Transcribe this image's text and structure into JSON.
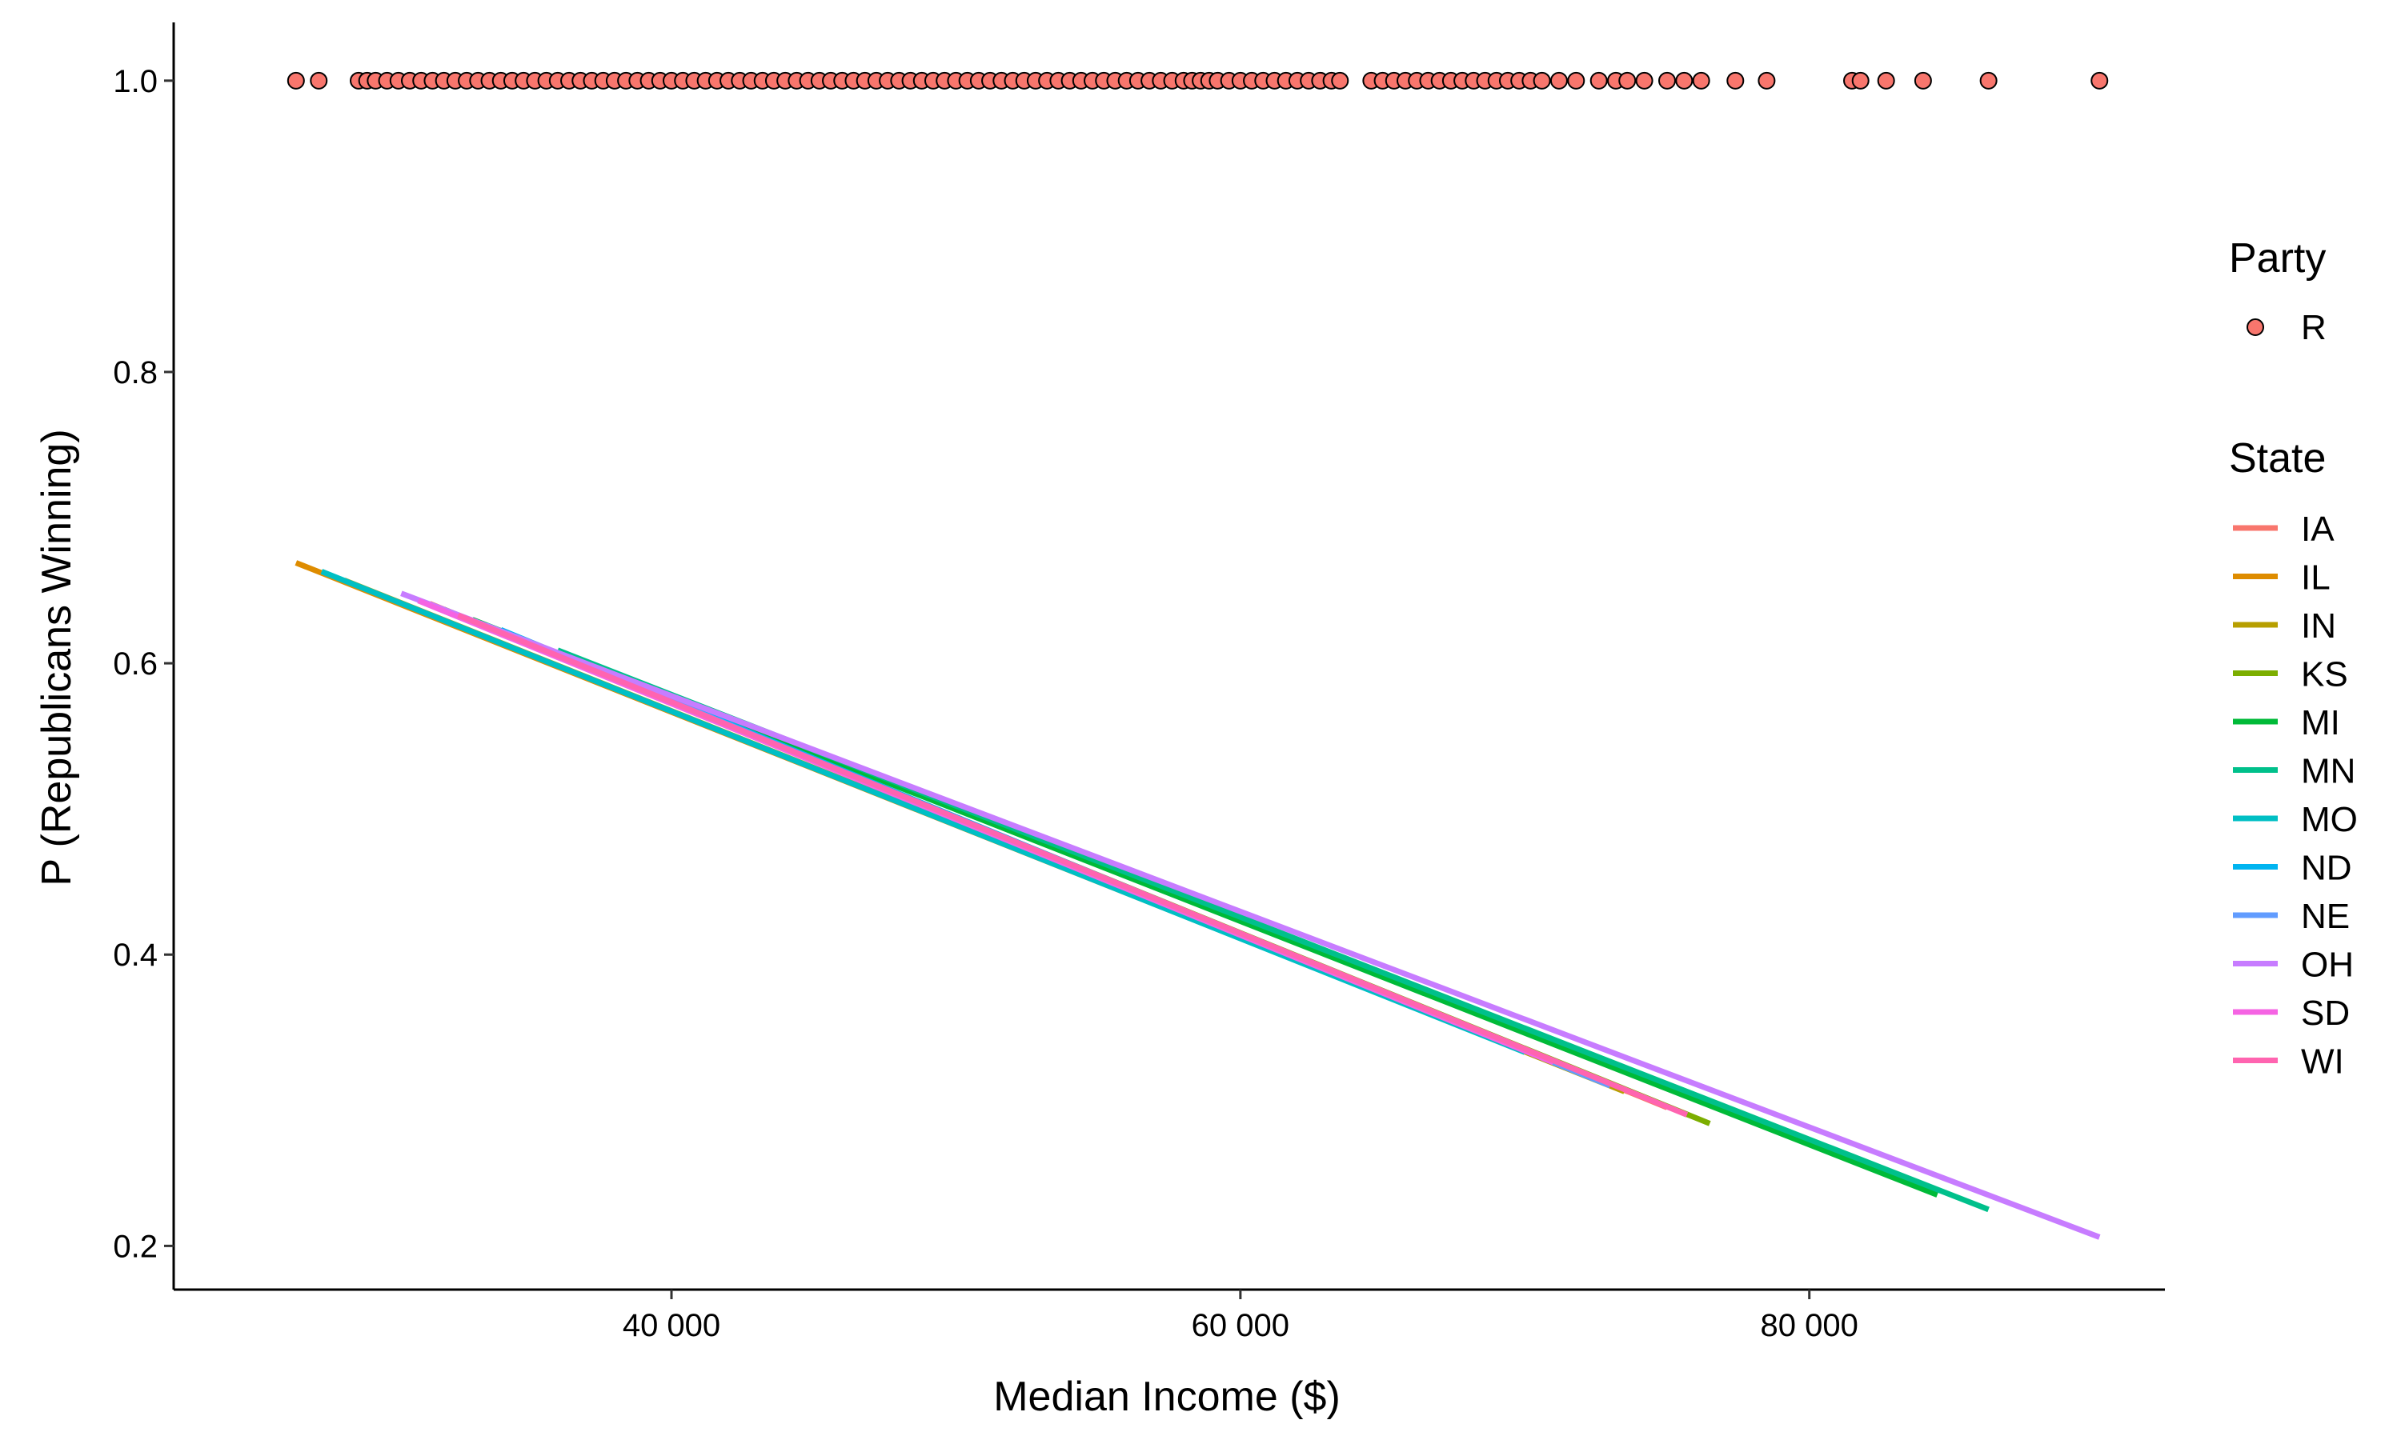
{
  "chart_data": {
    "type": "scatter",
    "xlabel": "Median Income ($)",
    "ylabel": "P (Republicans Winning)",
    "xlim": [
      22500,
      92500
    ],
    "ylim": [
      0.17,
      1.04
    ],
    "x_ticks": [
      40000,
      60000,
      80000
    ],
    "x_tick_labels": [
      "40 000",
      "60 000",
      "80 000"
    ],
    "y_ticks": [
      0.2,
      0.4,
      0.6,
      0.8,
      1.0
    ],
    "y_tick_labels": [
      "0.2",
      "0.4",
      "0.6",
      "0.8",
      "1.0"
    ],
    "grid": false,
    "points": {
      "legend_title": "Party",
      "series_name": "R",
      "fill": "#F8766D",
      "stroke": "#000000",
      "y": 1.0,
      "x": [
        26800,
        27600,
        29000,
        29300,
        29600,
        30000,
        30400,
        30800,
        31200,
        31600,
        32000,
        32400,
        32800,
        33200,
        33600,
        34000,
        34400,
        34800,
        35200,
        35600,
        36000,
        36400,
        36800,
        37200,
        37600,
        38000,
        38400,
        38800,
        39200,
        39600,
        40000,
        40400,
        40800,
        41200,
        41600,
        42000,
        42400,
        42800,
        43200,
        43600,
        44000,
        44400,
        44800,
        45200,
        45600,
        46000,
        46400,
        46800,
        47200,
        47600,
        48000,
        48400,
        48800,
        49200,
        49600,
        50000,
        50400,
        50800,
        51200,
        51600,
        52000,
        52400,
        52800,
        53200,
        53600,
        54000,
        54400,
        54800,
        55200,
        55600,
        56000,
        56400,
        56800,
        57200,
        57600,
        58000,
        58300,
        58600,
        58900,
        59200,
        59600,
        60000,
        60400,
        60800,
        61200,
        61600,
        62000,
        62400,
        62800,
        63200,
        63500,
        64600,
        65000,
        65400,
        65800,
        66200,
        66600,
        67000,
        67400,
        67800,
        68200,
        68600,
        69000,
        69400,
        69800,
        70200,
        70600,
        71200,
        71800,
        72600,
        73200,
        73600,
        74200,
        75000,
        75600,
        76200,
        77400,
        78500,
        81500,
        81800,
        82700,
        84000,
        86300,
        90200
      ]
    },
    "lines_legend_title": "State",
    "series": [
      {
        "name": "IA",
        "color": "#F8766D",
        "x": [
          31500,
          75000
        ],
        "y": [
          0.641,
          0.295
        ]
      },
      {
        "name": "IL",
        "color": "#DE8C00",
        "x": [
          26800,
          72000
        ],
        "y": [
          0.669,
          0.318
        ]
      },
      {
        "name": "IN",
        "color": "#B79F00",
        "x": [
          28500,
          73500
        ],
        "y": [
          0.657,
          0.306
        ]
      },
      {
        "name": "KS",
        "color": "#7CAE00",
        "x": [
          32000,
          76500
        ],
        "y": [
          0.637,
          0.284
        ]
      },
      {
        "name": "MI",
        "color": "#00BA38",
        "x": [
          33000,
          84500
        ],
        "y": [
          0.63,
          0.235
        ]
      },
      {
        "name": "MN",
        "color": "#00C08B",
        "x": [
          36000,
          86300
        ],
        "y": [
          0.609,
          0.225
        ]
      },
      {
        "name": "MO",
        "color": "#00BFC4",
        "x": [
          27700,
          70000
        ],
        "y": [
          0.663,
          0.333
        ]
      },
      {
        "name": "ND",
        "color": "#00B4F0",
        "x": [
          34000,
          72500
        ],
        "y": [
          0.623,
          0.314
        ]
      },
      {
        "name": "NE",
        "color": "#619CFF",
        "x": [
          33500,
          73000
        ],
        "y": [
          0.626,
          0.31
        ]
      },
      {
        "name": "OH",
        "color": "#C77CFF",
        "x": [
          30500,
          90200
        ],
        "y": [
          0.648,
          0.206
        ]
      },
      {
        "name": "SD",
        "color": "#F564E3",
        "x": [
          31100,
          71000
        ],
        "y": [
          0.643,
          0.326
        ]
      },
      {
        "name": "WI",
        "color": "#FF64B0",
        "x": [
          32500,
          75700
        ],
        "y": [
          0.633,
          0.29
        ]
      }
    ]
  }
}
